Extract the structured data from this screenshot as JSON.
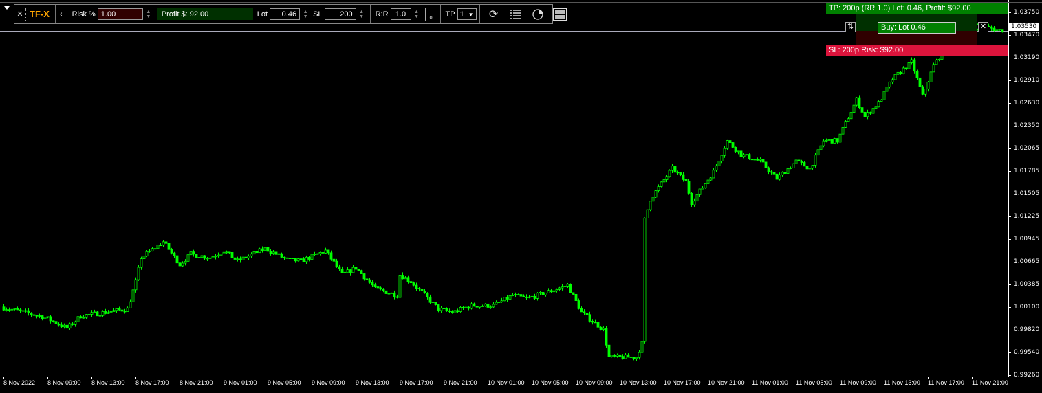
{
  "toolbar": {
    "brand": "TF-X",
    "risk_label": "Risk %",
    "risk_value": "1.00",
    "profit_text": "Profit $: 92.00",
    "lot_label": "Lot",
    "lot_value": "0.46",
    "sl_label": "SL",
    "sl_value": "200",
    "rr_label": "R:R",
    "rr_value": "1.0",
    "lock_count": "0",
    "tp_label": "TP",
    "tp_value": "1",
    "icons": [
      "menu-arrow-icon",
      "close-icon",
      "collapse-icon",
      "spinner-icon",
      "lock-icon",
      "dropdown-icon",
      "refresh-icon",
      "list-icon",
      "pie-chart-icon",
      "layout-icon"
    ]
  },
  "trade_overlay": {
    "tp_text": "TP: 200p (RR 1.0) Lot: 0.46, Profit: $92.00",
    "buy_text": "Buy: Lot 0.46",
    "sl_text": "SL: 200p Risk: $92.00",
    "colors": {
      "tp": "#008000",
      "sl": "#dc143c",
      "buy": "#008000"
    }
  },
  "chart_data": {
    "type": "candlestick",
    "color": "#00ff00",
    "background": "#000000",
    "current_price": "1.03530",
    "y_ticks": [
      "1.03750",
      "1.03470",
      "1.03190",
      "1.02910",
      "1.02630",
      "1.02350",
      "1.02065",
      "1.01785",
      "1.01505",
      "1.01225",
      "1.00945",
      "1.00665",
      "1.00385",
      "1.00100",
      "0.99820",
      "0.99540",
      "0.99260"
    ],
    "ylim": [
      0.9926,
      1.0375
    ],
    "x_ticks": [
      "8 Nov 2022",
      "8 Nov 09:00",
      "8 Nov 13:00",
      "8 Nov 17:00",
      "8 Nov 21:00",
      "9 Nov 01:00",
      "9 Nov 05:00",
      "9 Nov 09:00",
      "9 Nov 13:00",
      "9 Nov 17:00",
      "9 Nov 21:00",
      "10 Nov 01:00",
      "10 Nov 05:00",
      "10 Nov 09:00",
      "10 Nov 13:00",
      "10 Nov 17:00",
      "10 Nov 21:00",
      "11 Nov 01:00",
      "11 Nov 05:00",
      "11 Nov 09:00",
      "11 Nov 13:00",
      "11 Nov 17:00",
      "11 Nov 21:00"
    ],
    "day_separators": [
      "9 Nov 00:00",
      "10 Nov 00:00",
      "11 Nov 00:00"
    ],
    "price_path": [
      [
        "8 Nov 05:00",
        1.00104
      ],
      [
        "8 Nov 09:00",
        0.99976
      ],
      [
        "8 Nov 11:00",
        0.9984
      ],
      [
        "8 Nov 12:15",
        0.99993
      ],
      [
        "8 Nov 16:30",
        1.00078
      ],
      [
        "8 Nov 17:15",
        1.00418
      ],
      [
        "8 Nov 17:45",
        1.00716
      ],
      [
        "8 Nov 19:45",
        1.00911
      ],
      [
        "8 Nov 21:15",
        1.0063
      ],
      [
        "8 Nov 22:15",
        1.00758
      ],
      [
        "9 Nov 00:00",
        1.00716
      ],
      [
        "9 Nov 01:15",
        1.008
      ],
      [
        "9 Nov 02:30",
        1.00673
      ],
      [
        "9 Nov 05:00",
        1.00826
      ],
      [
        "9 Nov 07:00",
        1.0069
      ],
      [
        "9 Nov 08:15",
        1.00673
      ],
      [
        "9 Nov 10:30",
        1.008
      ],
      [
        "9 Nov 12:00",
        1.00503
      ],
      [
        "9 Nov 13:15",
        1.00588
      ],
      [
        "9 Nov 15:00",
        1.00333
      ],
      [
        "9 Nov 17:00",
        1.00248
      ],
      [
        "9 Nov 17:15",
        1.00503
      ],
      [
        "9 Nov 18:15",
        1.00418
      ],
      [
        "9 Nov 20:45",
        1.00078
      ],
      [
        "9 Nov 22:00",
        1.00036
      ],
      [
        "9 Nov 23:45",
        1.00121
      ],
      [
        "10 Nov 01:45",
        1.00121
      ],
      [
        "10 Nov 03:30",
        1.00248
      ],
      [
        "10 Nov 04:45",
        1.00206
      ],
      [
        "10 Nov 06:45",
        1.00291
      ],
      [
        "10 Nov 08:30",
        1.00376
      ],
      [
        "10 Nov 09:45",
        1.00036
      ],
      [
        "10 Nov 11:45",
        0.99823
      ],
      [
        "10 Nov 12:15",
        0.99483
      ],
      [
        "10 Nov 14:45",
        0.99483
      ],
      [
        "10 Nov 15:15",
        0.99653
      ],
      [
        "10 Nov 15:30",
        1.01183
      ],
      [
        "10 Nov 16:00",
        1.01438
      ],
      [
        "10 Nov 18:00",
        1.0182
      ],
      [
        "10 Nov 19:15",
        1.0165
      ],
      [
        "10 Nov 19:45",
        1.01396
      ],
      [
        "10 Nov 21:45",
        1.01778
      ],
      [
        "10 Nov 23:00",
        1.0216
      ],
      [
        "11 Nov 00:15",
        1.0199
      ],
      [
        "11 Nov 02:00",
        1.01906
      ],
      [
        "11 Nov 03:30",
        1.01693
      ],
      [
        "11 Nov 05:15",
        1.01906
      ],
      [
        "11 Nov 06:30",
        1.0182
      ],
      [
        "11 Nov 07:45",
        1.0216
      ],
      [
        "11 Nov 09:00",
        1.0216
      ],
      [
        "11 Nov 10:45",
        1.0267
      ],
      [
        "11 Nov 11:30",
        1.02458
      ],
      [
        "11 Nov 12:45",
        1.02628
      ],
      [
        "11 Nov 14:00",
        1.02925
      ],
      [
        "11 Nov 15:45",
        1.03138
      ],
      [
        "11 Nov 16:45",
        1.02713
      ],
      [
        "11 Nov 17:45",
        1.03095
      ],
      [
        "11 Nov 19:00",
        1.0335
      ],
      [
        "11 Nov 20:45",
        1.03563
      ],
      [
        "11 Nov 22:00",
        1.0358
      ],
      [
        "11 Nov 23:45",
        1.0353
      ]
    ]
  }
}
